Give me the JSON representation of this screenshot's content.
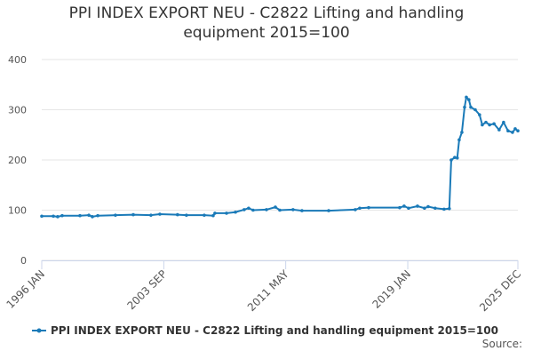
{
  "chart_data": {
    "type": "line",
    "title": "PPI INDEX EXPORT NEU - C2822 Lifting and handling equipment 2015=100",
    "x": [
      1996.0,
      1996.73,
      1997.0,
      1997.28,
      1998.4,
      1998.96,
      1999.18,
      1999.52,
      2000.63,
      2001.75,
      2002.86,
      2003.42,
      2004.53,
      2005.09,
      2006.21,
      2006.77,
      2006.88,
      2007.61,
      2008.17,
      2008.72,
      2009.0,
      2009.28,
      2010.12,
      2010.68,
      2010.96,
      2011.79,
      2012.35,
      2014.03,
      2015.7,
      2015.98,
      2016.54,
      2018.49,
      2018.77,
      2019.05,
      2019.61,
      2020.05,
      2020.28,
      2020.72,
      2021.28,
      2021.61,
      2021.73,
      2021.95,
      2022.11,
      2022.23,
      2022.4,
      2022.57,
      2022.68,
      2022.84,
      2022.96,
      2023.24,
      2023.51,
      2023.68,
      2023.91,
      2024.14,
      2024.42,
      2024.74,
      2025.02,
      2025.3,
      2025.58,
      2025.75,
      2025.92
    ],
    "series": [
      {
        "name": "PPI INDEX EXPORT NEU - C2822 Lifting and handling equipment 2015=100",
        "color": "#1a7ab8",
        "values": [
          88,
          88,
          87,
          89,
          89,
          90,
          87,
          89,
          90,
          91,
          90,
          92,
          91,
          90,
          90,
          89,
          94,
          94,
          96,
          101,
          104,
          100,
          101,
          106,
          100,
          101,
          99,
          99,
          101,
          104,
          105,
          105,
          108,
          104,
          108,
          104,
          107,
          104,
          102,
          103,
          200,
          205,
          204,
          240,
          255,
          305,
          325,
          320,
          305,
          300,
          290,
          270,
          275,
          270,
          272,
          260,
          275,
          258,
          255,
          262,
          258
        ]
      }
    ],
    "xlim": [
      1996.0,
      2025.92
    ],
    "xticks": [
      {
        "value": 1996.0,
        "label": "1996 JAN"
      },
      {
        "value": 2003.67,
        "label": "2003 SEP"
      },
      {
        "value": 2011.33,
        "label": "2011 MAY"
      },
      {
        "value": 2019.0,
        "label": "2019 JAN"
      },
      {
        "value": 2025.92,
        "label": "2025 DEC"
      }
    ],
    "ylim": [
      0,
      400
    ],
    "yticks": [
      0,
      100,
      200,
      300,
      400
    ],
    "grid": true,
    "source": "Source:"
  }
}
